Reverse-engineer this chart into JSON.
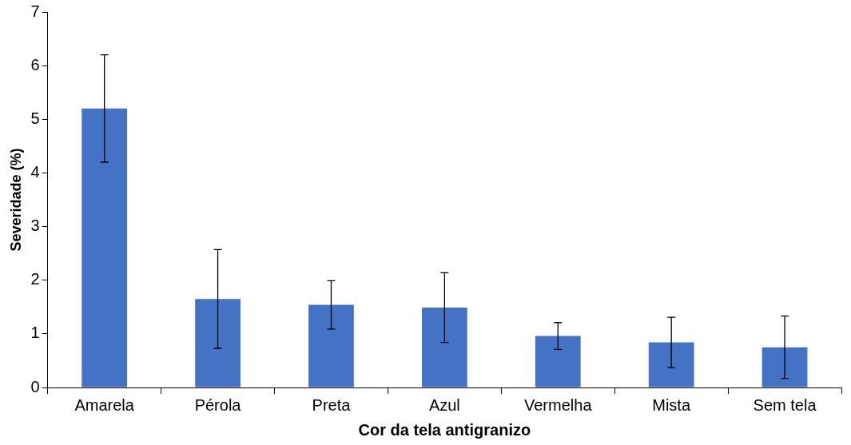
{
  "chart_data": {
    "type": "bar",
    "xlabel": "Cor da tela antigranizo",
    "ylabel": "Severidade (%)",
    "categories": [
      "Amarela",
      "Pérola",
      "Preta",
      "Azul",
      "Vermelha",
      "Mista",
      "Sem tela"
    ],
    "values": [
      5.2,
      1.65,
      1.54,
      1.49,
      0.96,
      0.84,
      0.75
    ],
    "errors": [
      1.0,
      0.92,
      0.45,
      0.65,
      0.25,
      0.47,
      0.58
    ],
    "color": "#4472c4",
    "ylim": [
      0,
      7
    ],
    "yticks": [
      0,
      1,
      2,
      3,
      4,
      5,
      6,
      7
    ],
    "grid": false,
    "legend": false
  }
}
